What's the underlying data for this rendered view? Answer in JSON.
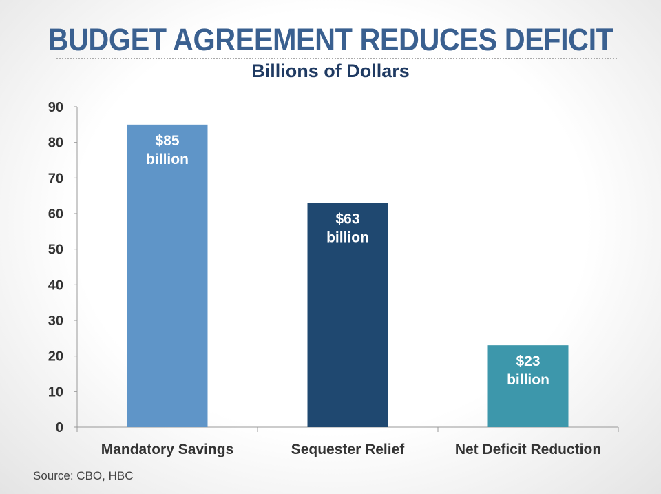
{
  "chart_data": {
    "type": "bar",
    "title": "BUDGET AGREEMENT REDUCES DEFICIT",
    "subtitle": "Billions of Dollars",
    "categories": [
      "Mandatory Savings",
      "Sequester Relief",
      "Net Deficit Reduction"
    ],
    "values": [
      85,
      63,
      23
    ],
    "data_labels": [
      [
        "$85",
        "billion"
      ],
      [
        "$63",
        "billion"
      ],
      [
        "$23",
        "billion"
      ]
    ],
    "colors": [
      "#5f95c8",
      "#1f4870",
      "#3d97ab"
    ],
    "ylim": [
      0,
      90
    ],
    "yticks": [
      0,
      10,
      20,
      30,
      40,
      50,
      60,
      70,
      80,
      90
    ],
    "xlabel": "",
    "ylabel": "",
    "grid": false,
    "source": "Source: CBO, HBC"
  }
}
